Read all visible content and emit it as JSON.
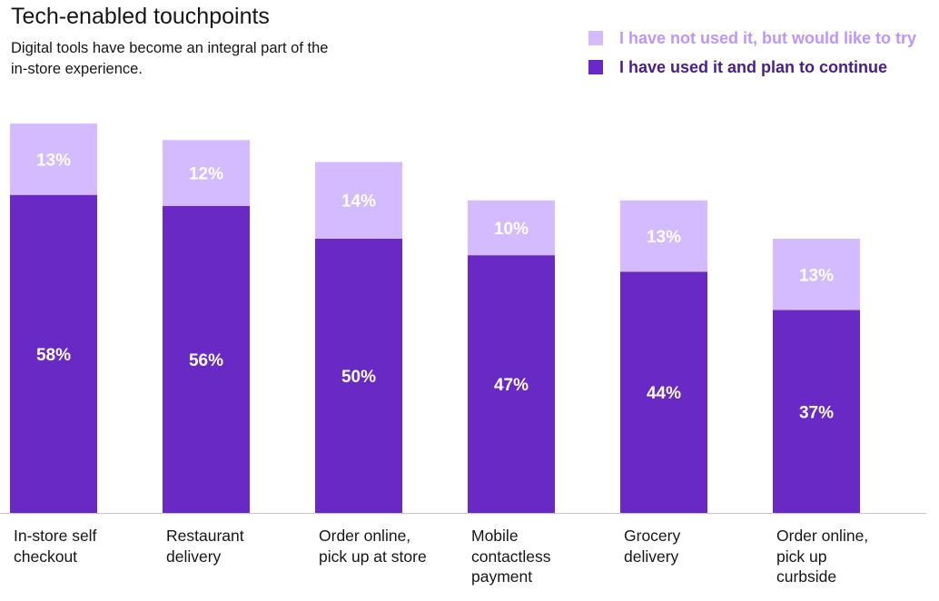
{
  "chart_data": {
    "type": "bar",
    "stacked": true,
    "title": "Tech-enabled touchpoints",
    "subtitle": "Digital tools have become an integral part of the in-store experience.",
    "categories": [
      "In-store self checkout",
      "Restaurant delivery",
      "Order online, pick up at store",
      "Mobile contactless payment",
      "Grocery delivery",
      "Order online, pick up curbside"
    ],
    "series": [
      {
        "name": "I have used it and plan to continue",
        "values": [
          58,
          56,
          50,
          47,
          44,
          37
        ],
        "labels": [
          "58%",
          "56%",
          "50%",
          "47%",
          "44%",
          "37%"
        ],
        "color": "#6929c4"
      },
      {
        "name": "I have not used it, but would like to try",
        "values": [
          13,
          12,
          14,
          10,
          13,
          13
        ],
        "labels": [
          "13%",
          "12%",
          "14%",
          "10%",
          "13%",
          "13%"
        ],
        "color": "#d4bbff"
      }
    ],
    "legend_position": "top-right",
    "grid": false
  }
}
